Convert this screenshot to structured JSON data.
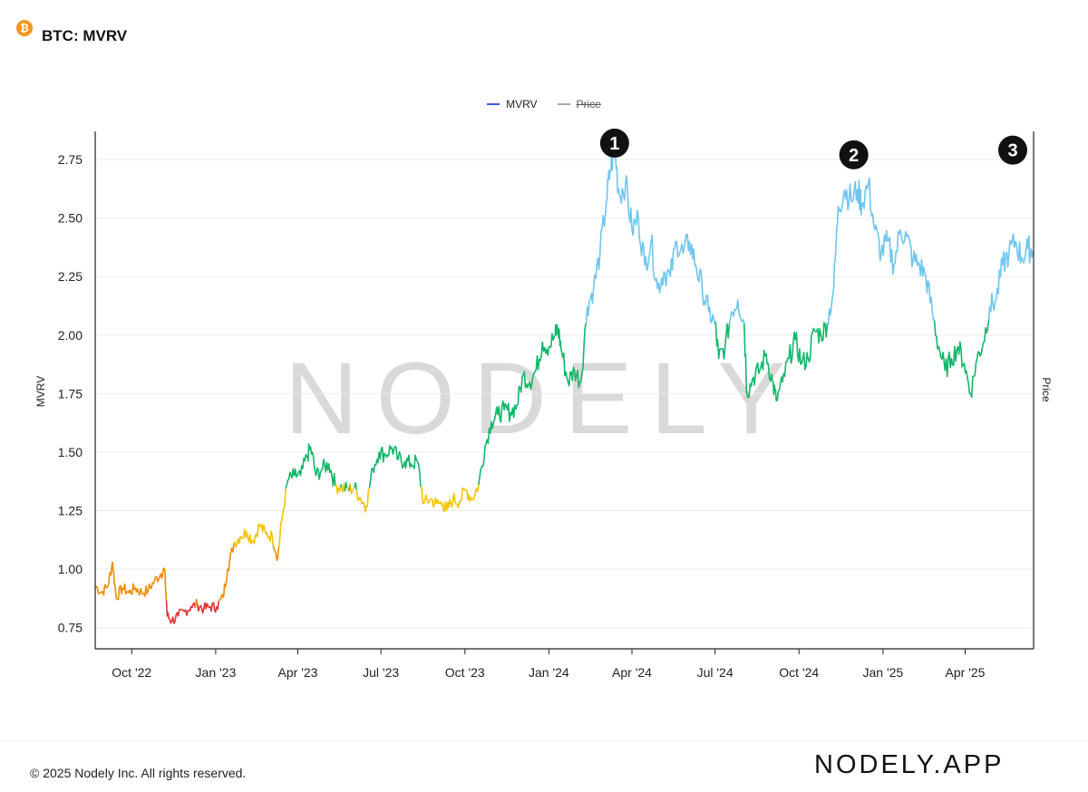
{
  "header": {
    "title": "BTC: MVRV",
    "icon": "bitcoin-icon",
    "icon_glyph": "₿",
    "icon_color": "#f7931a"
  },
  "legend": [
    {
      "label": "MVRV",
      "color": "#3b5bdb",
      "hidden": false
    },
    {
      "label": "Price",
      "color": "#aaaaaa",
      "hidden": true
    }
  ],
  "watermark": "NODELY",
  "footer": {
    "copyright": "© 2025 Nodely Inc. All rights reserved.",
    "brand": "NODELY.APP"
  },
  "chart_data": {
    "type": "line",
    "title": "BTC: MVRV",
    "ylabel": "MVRV",
    "y2label": "Price",
    "ylim": [
      0.66,
      2.87
    ],
    "yticks": [
      0.75,
      1.0,
      1.25,
      1.5,
      1.75,
      2.0,
      2.25,
      2.5,
      2.75
    ],
    "ytick_labels": [
      "0.75",
      "1.00",
      "1.25",
      "1.50",
      "1.75",
      "2.00",
      "2.25",
      "2.50",
      "2.75"
    ],
    "xlim": [
      "2022-08-22",
      "2025-06-15"
    ],
    "xticks": [
      "2022-10-01",
      "2023-01-01",
      "2023-04-01",
      "2023-07-01",
      "2023-10-01",
      "2024-01-01",
      "2024-04-01",
      "2024-07-01",
      "2024-10-01",
      "2025-01-01",
      "2025-04-01"
    ],
    "xtick_labels": [
      "Oct '22",
      "Jan '23",
      "Apr '23",
      "Jul '23",
      "Oct '23",
      "Jan '24",
      "Apr '24",
      "Jul '24",
      "Oct '24",
      "Jan '25",
      "Apr '25"
    ],
    "grid": true,
    "legend_position": "top-center",
    "color_bands": [
      {
        "min": 0,
        "max": 0.85,
        "color": "#e03131"
      },
      {
        "min": 0.85,
        "max": 1.1,
        "color": "#f08c00"
      },
      {
        "min": 1.1,
        "max": 1.35,
        "color": "#f5c400"
      },
      {
        "min": 1.35,
        "max": 2.05,
        "color": "#12b76a"
      },
      {
        "min": 2.05,
        "max": 9,
        "color": "#6ec6ee"
      }
    ],
    "series": [
      {
        "name": "MVRV",
        "points": [
          [
            "2022-08-22",
            0.93
          ],
          [
            "2022-08-29",
            0.9
          ],
          [
            "2022-09-05",
            0.93
          ],
          [
            "2022-09-10",
            1.03
          ],
          [
            "2022-09-14",
            0.88
          ],
          [
            "2022-09-21",
            0.92
          ],
          [
            "2022-09-28",
            0.9
          ],
          [
            "2022-10-05",
            0.92
          ],
          [
            "2022-10-12",
            0.9
          ],
          [
            "2022-10-19",
            0.91
          ],
          [
            "2022-10-26",
            0.95
          ],
          [
            "2022-11-02",
            0.98
          ],
          [
            "2022-11-06",
            1.0
          ],
          [
            "2022-11-09",
            0.8
          ],
          [
            "2022-11-14",
            0.78
          ],
          [
            "2022-11-21",
            0.8
          ],
          [
            "2022-11-28",
            0.82
          ],
          [
            "2022-12-05",
            0.84
          ],
          [
            "2022-12-12",
            0.85
          ],
          [
            "2022-12-19",
            0.83
          ],
          [
            "2022-12-26",
            0.84
          ],
          [
            "2023-01-02",
            0.84
          ],
          [
            "2023-01-09",
            0.88
          ],
          [
            "2023-01-14",
            1.0
          ],
          [
            "2023-01-21",
            1.11
          ],
          [
            "2023-01-28",
            1.14
          ],
          [
            "2023-02-04",
            1.16
          ],
          [
            "2023-02-11",
            1.12
          ],
          [
            "2023-02-18",
            1.19
          ],
          [
            "2023-02-25",
            1.15
          ],
          [
            "2023-03-04",
            1.14
          ],
          [
            "2023-03-10",
            1.05
          ],
          [
            "2023-03-14",
            1.2
          ],
          [
            "2023-03-21",
            1.38
          ],
          [
            "2023-03-28",
            1.4
          ],
          [
            "2023-04-04",
            1.4
          ],
          [
            "2023-04-11",
            1.48
          ],
          [
            "2023-04-15",
            1.52
          ],
          [
            "2023-04-21",
            1.4
          ],
          [
            "2023-04-28",
            1.43
          ],
          [
            "2023-05-05",
            1.45
          ],
          [
            "2023-05-12",
            1.36
          ],
          [
            "2023-05-19",
            1.35
          ],
          [
            "2023-05-26",
            1.34
          ],
          [
            "2023-06-02",
            1.35
          ],
          [
            "2023-06-09",
            1.3
          ],
          [
            "2023-06-15",
            1.27
          ],
          [
            "2023-06-22",
            1.43
          ],
          [
            "2023-06-29",
            1.5
          ],
          [
            "2023-07-06",
            1.49
          ],
          [
            "2023-07-13",
            1.52
          ],
          [
            "2023-07-20",
            1.47
          ],
          [
            "2023-07-27",
            1.46
          ],
          [
            "2023-08-03",
            1.45
          ],
          [
            "2023-08-10",
            1.46
          ],
          [
            "2023-08-17",
            1.28
          ],
          [
            "2023-08-24",
            1.3
          ],
          [
            "2023-08-31",
            1.28
          ],
          [
            "2023-09-07",
            1.28
          ],
          [
            "2023-09-11",
            1.25
          ],
          [
            "2023-09-18",
            1.3
          ],
          [
            "2023-09-25",
            1.29
          ],
          [
            "2023-10-02",
            1.34
          ],
          [
            "2023-10-09",
            1.3
          ],
          [
            "2023-10-16",
            1.36
          ],
          [
            "2023-10-23",
            1.52
          ],
          [
            "2023-10-30",
            1.63
          ],
          [
            "2023-11-06",
            1.66
          ],
          [
            "2023-11-13",
            1.68
          ],
          [
            "2023-11-20",
            1.67
          ],
          [
            "2023-11-27",
            1.7
          ],
          [
            "2023-12-04",
            1.83
          ],
          [
            "2023-12-11",
            1.8
          ],
          [
            "2023-12-18",
            1.85
          ],
          [
            "2023-12-25",
            1.97
          ],
          [
            "2024-01-01",
            1.95
          ],
          [
            "2024-01-08",
            2.0
          ],
          [
            "2024-01-11",
            2.03
          ],
          [
            "2024-01-15",
            1.93
          ],
          [
            "2024-01-22",
            1.8
          ],
          [
            "2024-01-29",
            1.85
          ],
          [
            "2024-02-05",
            1.8
          ],
          [
            "2024-02-12",
            2.12
          ],
          [
            "2024-02-19",
            2.2
          ],
          [
            "2024-02-26",
            2.35
          ],
          [
            "2024-03-04",
            2.57
          ],
          [
            "2024-03-08",
            2.7
          ],
          [
            "2024-03-13",
            2.8
          ],
          [
            "2024-03-18",
            2.6
          ],
          [
            "2024-03-25",
            2.65
          ],
          [
            "2024-04-01",
            2.45
          ],
          [
            "2024-04-08",
            2.5
          ],
          [
            "2024-04-15",
            2.3
          ],
          [
            "2024-04-22",
            2.4
          ],
          [
            "2024-04-29",
            2.2
          ],
          [
            "2024-05-06",
            2.27
          ],
          [
            "2024-05-13",
            2.25
          ],
          [
            "2024-05-20",
            2.4
          ],
          [
            "2024-05-27",
            2.35
          ],
          [
            "2024-06-03",
            2.4
          ],
          [
            "2024-06-10",
            2.3
          ],
          [
            "2024-06-17",
            2.2
          ],
          [
            "2024-06-24",
            2.1
          ],
          [
            "2024-07-01",
            2.05
          ],
          [
            "2024-07-05",
            1.9
          ],
          [
            "2024-07-12",
            1.95
          ],
          [
            "2024-07-19",
            2.1
          ],
          [
            "2024-07-26",
            2.15
          ],
          [
            "2024-08-02",
            2.05
          ],
          [
            "2024-08-05",
            1.75
          ],
          [
            "2024-08-12",
            1.82
          ],
          [
            "2024-08-19",
            1.85
          ],
          [
            "2024-08-26",
            1.92
          ],
          [
            "2024-09-02",
            1.8
          ],
          [
            "2024-09-06",
            1.72
          ],
          [
            "2024-09-13",
            1.8
          ],
          [
            "2024-09-20",
            1.9
          ],
          [
            "2024-09-27",
            1.98
          ],
          [
            "2024-10-04",
            1.88
          ],
          [
            "2024-10-11",
            1.9
          ],
          [
            "2024-10-18",
            2.02
          ],
          [
            "2024-10-25",
            2.0
          ],
          [
            "2024-11-01",
            2.05
          ],
          [
            "2024-11-08",
            2.2
          ],
          [
            "2024-11-13",
            2.55
          ],
          [
            "2024-11-20",
            2.62
          ],
          [
            "2024-11-27",
            2.58
          ],
          [
            "2024-12-04",
            2.62
          ],
          [
            "2024-12-09",
            2.56
          ],
          [
            "2024-12-16",
            2.65
          ],
          [
            "2024-12-23",
            2.45
          ],
          [
            "2024-12-30",
            2.35
          ],
          [
            "2025-01-06",
            2.4
          ],
          [
            "2025-01-13",
            2.3
          ],
          [
            "2025-01-20",
            2.45
          ],
          [
            "2025-01-27",
            2.42
          ],
          [
            "2025-02-03",
            2.32
          ],
          [
            "2025-02-10",
            2.3
          ],
          [
            "2025-02-17",
            2.25
          ],
          [
            "2025-02-24",
            2.1
          ],
          [
            "2025-03-03",
            1.95
          ],
          [
            "2025-03-10",
            1.85
          ],
          [
            "2025-03-17",
            1.9
          ],
          [
            "2025-03-24",
            1.95
          ],
          [
            "2025-03-31",
            1.88
          ],
          [
            "2025-04-07",
            1.75
          ],
          [
            "2025-04-14",
            1.9
          ],
          [
            "2025-04-21",
            1.97
          ],
          [
            "2025-04-28",
            2.12
          ],
          [
            "2025-05-05",
            2.15
          ],
          [
            "2025-05-12",
            2.3
          ],
          [
            "2025-05-19",
            2.35
          ],
          [
            "2025-05-26",
            2.4
          ],
          [
            "2025-06-02",
            2.33
          ],
          [
            "2025-06-09",
            2.37
          ],
          [
            "2025-06-14",
            2.36
          ]
        ]
      }
    ],
    "annotations": [
      {
        "label": "1",
        "x": "2024-03-13",
        "y": 2.82
      },
      {
        "label": "2",
        "x": "2024-11-30",
        "y": 2.77
      },
      {
        "label": "3",
        "x": "2025-06-13",
        "y": 2.79
      }
    ]
  }
}
